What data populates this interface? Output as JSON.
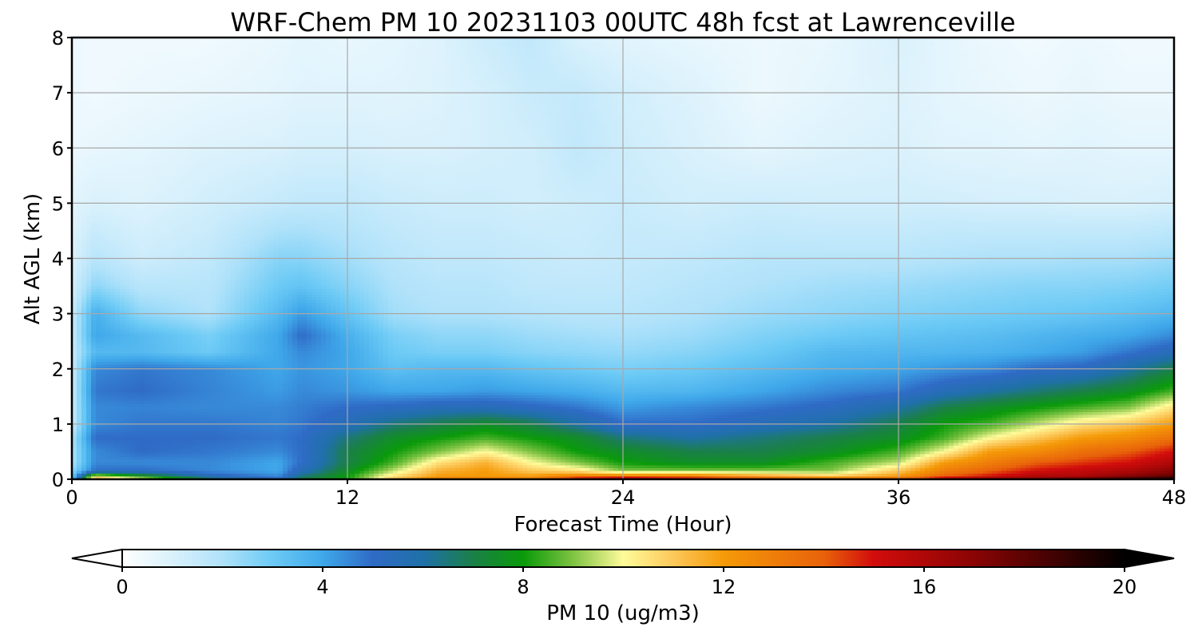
{
  "chart_data": {
    "type": "heatmap",
    "title": "WRF-Chem PM 10  20231103 00UTC 48h fcst at Lawrenceville",
    "xlabel": "Forecast Time (Hour)",
    "ylabel": "Alt AGL (km)",
    "xlim": [
      0,
      48
    ],
    "ylim": [
      0,
      8
    ],
    "xticks": [
      0,
      12,
      24,
      36,
      48
    ],
    "yticks": [
      0,
      1,
      2,
      3,
      4,
      5,
      6,
      7,
      8
    ],
    "grid": true,
    "colorbar": {
      "label": "PM 10  (ug/m3)",
      "range": [
        0,
        20
      ],
      "ticks": [
        0,
        4,
        8,
        12,
        16,
        20
      ],
      "extend": "both",
      "placement": "bottom",
      "stops": [
        {
          "v": 0,
          "c": "#ffffff"
        },
        {
          "v": 1,
          "c": "#d9f1fc"
        },
        {
          "v": 2,
          "c": "#b0e2fa"
        },
        {
          "v": 3,
          "c": "#6ccaf5"
        },
        {
          "v": 4,
          "c": "#3fa8ea"
        },
        {
          "v": 5,
          "c": "#2f6bc6"
        },
        {
          "v": 6,
          "c": "#1f70a8"
        },
        {
          "v": 7,
          "c": "#1a8048"
        },
        {
          "v": 8,
          "c": "#0a9a0a"
        },
        {
          "v": 9,
          "c": "#7ec342"
        },
        {
          "v": 10,
          "c": "#fffb9a"
        },
        {
          "v": 11,
          "c": "#fcc85a"
        },
        {
          "v": 12,
          "c": "#f59a08"
        },
        {
          "v": 14,
          "c": "#e8620a"
        },
        {
          "v": 15,
          "c": "#d20c0c"
        },
        {
          "v": 17,
          "c": "#8a0404"
        },
        {
          "v": 20,
          "c": "#000000"
        }
      ],
      "under_color": "#ffffff",
      "over_color": "#000000"
    },
    "z_units": "ug/m3",
    "x": [
      0,
      1,
      3,
      6,
      9,
      10,
      12,
      14,
      16,
      18,
      20,
      22,
      24,
      27,
      30,
      33,
      36,
      38,
      40,
      42,
      44,
      46,
      48
    ],
    "y": [
      0,
      0.05,
      0.15,
      0.3,
      0.5,
      0.75,
      1.0,
      1.3,
      1.6,
      2.0,
      2.3,
      2.6,
      3.0,
      3.5,
      4.0,
      5.0,
      6.0,
      7.0,
      8.0
    ],
    "z": [
      [
        3.0,
        12.0,
        10.0,
        7.0,
        5.0,
        7.0,
        8.0,
        11.0,
        13.0,
        13.0,
        13.0,
        16.0,
        17.0,
        16.0,
        15.0,
        14.0,
        14.0,
        16.0,
        17.0,
        17.0,
        18.0,
        19.0,
        20.0
      ],
      [
        3.0,
        10.0,
        8.0,
        5.5,
        4.5,
        6.5,
        8.0,
        10.5,
        12.0,
        12.0,
        12.0,
        13.0,
        13.0,
        13.0,
        12.0,
        11.0,
        12.0,
        14.0,
        15.0,
        16.0,
        16.0,
        17.0,
        18.0
      ],
      [
        2.5,
        5.0,
        5.0,
        4.5,
        4.0,
        5.5,
        7.5,
        9.5,
        11.5,
        12.0,
        11.0,
        10.5,
        9.0,
        9.0,
        9.0,
        9.0,
        11.0,
        13.0,
        14.0,
        15.0,
        15.5,
        16.0,
        17.0
      ],
      [
        2.0,
        4.5,
        4.5,
        4.5,
        4.0,
        5.0,
        7.0,
        8.5,
        10.5,
        11.5,
        10.0,
        9.0,
        8.0,
        7.5,
        7.5,
        8.5,
        9.5,
        12.0,
        13.0,
        14.0,
        14.5,
        15.0,
        16.0
      ],
      [
        2.0,
        4.5,
        5.0,
        4.8,
        4.5,
        5.0,
        7.0,
        8.0,
        9.0,
        10.0,
        9.0,
        8.0,
        7.5,
        7.0,
        7.0,
        7.5,
        8.5,
        10.0,
        12.0,
        12.5,
        13.5,
        14.0,
        15.0
      ],
      [
        2.0,
        5.0,
        5.0,
        5.0,
        4.8,
        5.0,
        6.5,
        7.5,
        8.0,
        8.5,
        8.0,
        7.5,
        6.5,
        6.0,
        6.5,
        7.0,
        7.5,
        8.5,
        10.0,
        11.0,
        12.0,
        12.5,
        13.5
      ],
      [
        1.5,
        4.5,
        4.8,
        4.8,
        4.6,
        4.8,
        5.5,
        6.5,
        7.0,
        7.5,
        7.0,
        6.0,
        5.0,
        5.0,
        5.5,
        6.0,
        7.0,
        8.0,
        8.5,
        9.5,
        10.5,
        11.0,
        12.0
      ],
      [
        1.5,
        4.5,
        4.6,
        4.5,
        4.5,
        4.7,
        5.0,
        5.2,
        5.5,
        5.5,
        5.2,
        4.8,
        4.2,
        4.5,
        4.8,
        5.2,
        6.0,
        7.0,
        7.5,
        8.0,
        8.5,
        9.0,
        10.5
      ],
      [
        1.5,
        4.8,
        5.0,
        4.6,
        4.2,
        4.5,
        4.3,
        4.0,
        4.0,
        4.2,
        4.0,
        3.8,
        3.5,
        3.6,
        4.0,
        4.5,
        4.8,
        5.5,
        6.0,
        6.5,
        7.0,
        7.5,
        8.5
      ],
      [
        1.5,
        4.5,
        4.8,
        4.5,
        4.0,
        4.3,
        4.0,
        3.3,
        3.5,
        3.5,
        3.2,
        3.0,
        2.8,
        3.0,
        3.4,
        3.8,
        4.0,
        4.3,
        4.5,
        5.0,
        5.2,
        6.0,
        7.0
      ],
      [
        1.5,
        3.5,
        3.5,
        3.0,
        4.0,
        4.5,
        4.0,
        3.0,
        2.8,
        2.8,
        2.6,
        2.5,
        2.4,
        2.6,
        3.0,
        3.5,
        3.6,
        3.6,
        3.7,
        3.9,
        4.2,
        4.8,
        5.5
      ],
      [
        1.5,
        4.0,
        3.5,
        2.8,
        4.0,
        5.0,
        3.8,
        2.8,
        2.5,
        2.5,
        2.3,
        2.2,
        2.1,
        2.3,
        2.7,
        3.0,
        3.2,
        3.3,
        3.4,
        3.6,
        3.8,
        4.0,
        4.5
      ],
      [
        1.5,
        3.8,
        2.5,
        2.0,
        3.5,
        4.2,
        3.2,
        2.2,
        2.0,
        2.0,
        1.9,
        1.8,
        1.8,
        2.0,
        2.3,
        2.5,
        2.7,
        2.8,
        2.9,
        3.0,
        3.1,
        3.3,
        3.6
      ],
      [
        1.2,
        2.5,
        1.8,
        1.8,
        3.0,
        3.2,
        2.6,
        2.0,
        1.8,
        1.8,
        1.6,
        1.6,
        1.6,
        1.8,
        2.0,
        2.2,
        2.3,
        2.4,
        2.5,
        2.6,
        2.6,
        2.7,
        2.9
      ],
      [
        1.0,
        1.8,
        1.3,
        1.6,
        2.6,
        2.6,
        2.2,
        1.8,
        1.6,
        1.6,
        1.5,
        1.4,
        1.5,
        1.6,
        1.8,
        1.8,
        1.8,
        1.9,
        2.0,
        2.0,
        2.1,
        2.1,
        2.3
      ],
      [
        0.8,
        1.0,
        0.9,
        1.2,
        1.5,
        1.6,
        1.6,
        1.4,
        1.3,
        1.3,
        1.2,
        1.3,
        1.4,
        1.2,
        1.3,
        1.2,
        1.2,
        1.2,
        1.1,
        1.1,
        1.0,
        1.0,
        1.1
      ],
      [
        0.5,
        0.6,
        0.7,
        0.9,
        1.0,
        1.1,
        1.1,
        1.0,
        1.0,
        1.1,
        1.2,
        1.6,
        1.3,
        1.0,
        0.7,
        0.9,
        1.0,
        0.8,
        0.8,
        0.7,
        0.8,
        0.7,
        0.7
      ],
      [
        0.5,
        0.4,
        0.5,
        0.6,
        0.7,
        0.8,
        0.8,
        0.8,
        0.9,
        1.1,
        1.4,
        1.5,
        1.2,
        0.9,
        0.5,
        0.7,
        0.9,
        0.7,
        0.6,
        0.5,
        0.6,
        0.5,
        0.5
      ],
      [
        0.5,
        0.4,
        0.4,
        0.4,
        0.6,
        0.7,
        0.6,
        0.7,
        0.9,
        1.3,
        1.6,
        1.0,
        0.8,
        0.6,
        0.5,
        0.6,
        1.0,
        0.7,
        0.5,
        0.4,
        0.5,
        0.4,
        0.4
      ]
    ]
  }
}
